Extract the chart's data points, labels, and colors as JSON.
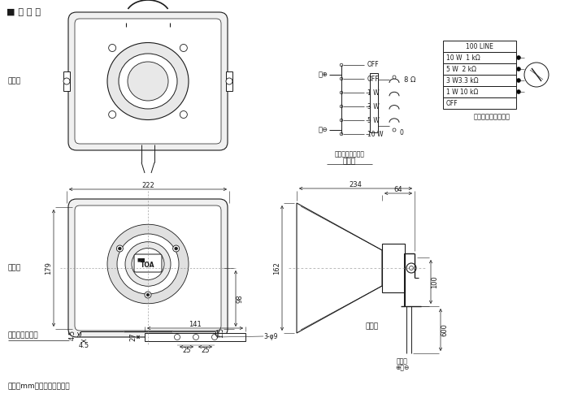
{
  "title": "■ 外 観 図",
  "bg_color": "#ffffff",
  "line_color": "#1a1a1a",
  "text_color": "#1a1a1a",
  "font_size_label": 6.5,
  "font_size_dim": 6.0,
  "font_size_title": 8.0,
  "sections": {
    "rear_label": "背面図",
    "front_label": "正面図",
    "side_label": "側面図",
    "angle_label": "アングル寸法図"
  },
  "dimensions": {
    "front_width": "222",
    "front_height": "179",
    "front_base_h": "98",
    "front_foot1": "4.5",
    "front_foot2": "4.5",
    "front_foot3": "1.5",
    "angle_width": "141",
    "angle_height": "27",
    "angle_hole": "3-φ9",
    "side_width": "234",
    "side_rear": "64",
    "side_height": "162",
    "side_foot": "100",
    "side_cable": "600"
  },
  "wiring": {
    "title": "結線図",
    "subtitle": "（出荷時の設定）",
    "taps": [
      "OFF",
      "OFF",
      "1 W",
      "3 W",
      "5 W",
      "10 W"
    ],
    "impedance": "8 Ω",
    "ref": "0",
    "black_label": "黒⊕",
    "white_label": "白⊖"
  },
  "impedance_table": {
    "title": "インピーダンス切換",
    "rows": [
      "100 LINE",
      "10 W  1 kΩ",
      "5 W  2 kΩ",
      "3 W3.3 kΩ",
      "1 W 10 kΩ",
      "OFF"
    ]
  },
  "footer": "単位：mm　　縮尺：１／５",
  "terminal_labels": [
    "黒　白",
    "⊕　⊖"
  ]
}
